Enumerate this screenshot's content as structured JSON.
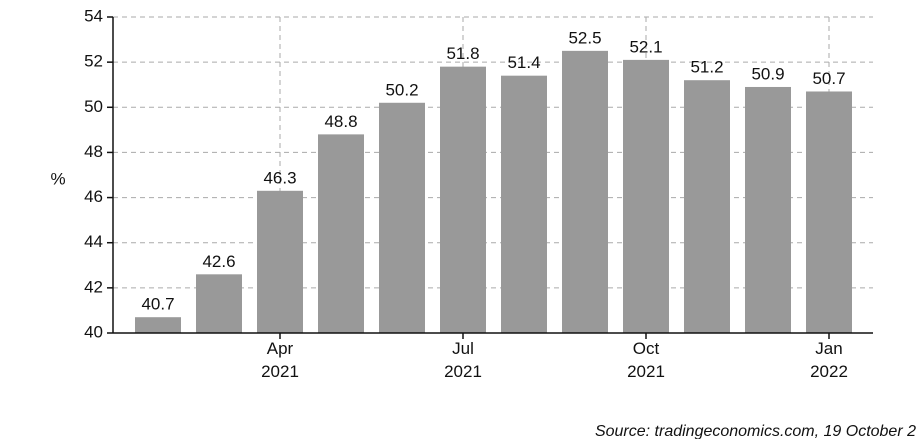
{
  "chart_data": {
    "type": "bar",
    "y_label": "%",
    "categories": [
      null,
      null,
      "Apr 2021",
      null,
      null,
      "Jul 2021",
      null,
      null,
      "Oct 2021",
      null,
      null,
      "Jan 2022"
    ],
    "values": [
      40.7,
      42.6,
      46.3,
      48.8,
      50.2,
      51.8,
      51.4,
      52.5,
      52.1,
      51.2,
      50.9,
      50.7
    ],
    "color": "#999999",
    "ylim": [
      40,
      54
    ],
    "yticks": [
      40,
      42,
      44,
      46,
      48,
      50,
      52,
      54
    ],
    "grid": true,
    "source": "Source: tradingeconomics.com, 19 October 2"
  }
}
